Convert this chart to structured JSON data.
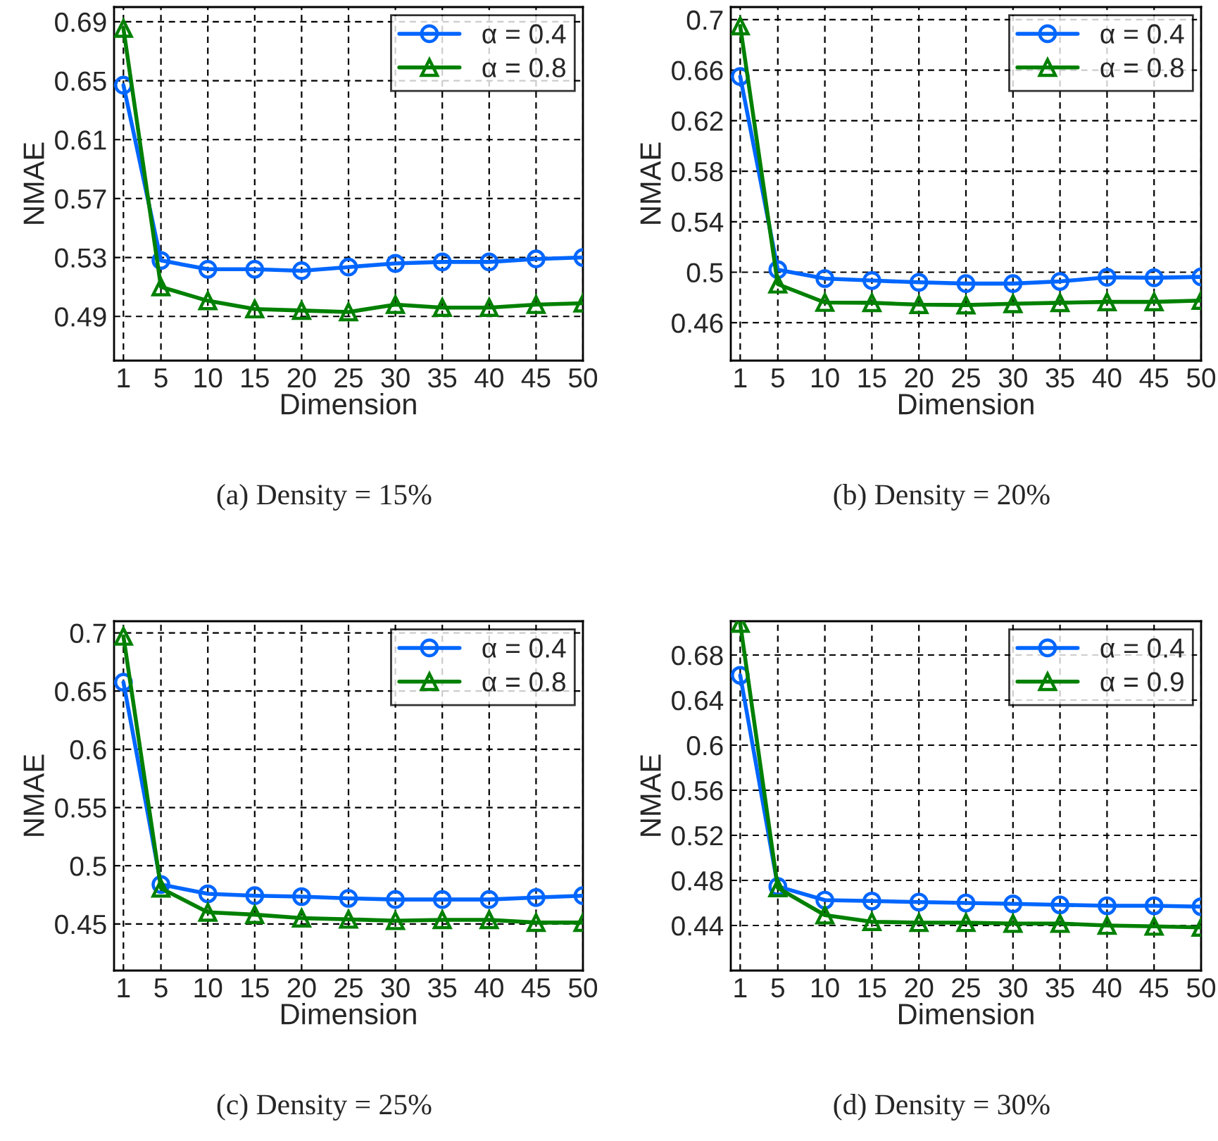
{
  "chart_data": [
    {
      "type": "line",
      "xlabel": "Dimension",
      "ylabel": "NMAE",
      "annotations": [
        "(a) Density = 15%"
      ],
      "x": [
        1,
        5,
        10,
        15,
        20,
        25,
        30,
        35,
        40,
        45,
        50
      ],
      "xlim": [
        0,
        50
      ],
      "xticks": [
        1,
        5,
        10,
        15,
        20,
        25,
        30,
        35,
        40,
        45,
        50
      ],
      "ylim": [
        0.46,
        0.7
      ],
      "yticks": [
        0.49,
        0.53,
        0.57,
        0.61,
        0.65,
        0.69
      ],
      "grid": true,
      "legend": "top right",
      "series": [
        {
          "name": "α = 0.4",
          "color": "#0066ff",
          "marker": "circle",
          "values": [
            0.647,
            0.528,
            0.522,
            0.522,
            0.521,
            0.5235,
            0.526,
            0.527,
            0.527,
            0.529,
            0.53
          ]
        },
        {
          "name": "α = 0.8",
          "color": "#008000",
          "marker": "triangle",
          "values": [
            0.6855,
            0.51,
            0.5006,
            0.495,
            0.494,
            0.493,
            0.498,
            0.496,
            0.496,
            0.498,
            0.499
          ]
        }
      ]
    },
    {
      "type": "line",
      "xlabel": "Dimension",
      "ylabel": "NMAE",
      "annotations": [
        "(b) Density = 20%"
      ],
      "x": [
        1,
        5,
        10,
        15,
        20,
        25,
        30,
        35,
        40,
        45,
        50
      ],
      "xlim": [
        0,
        50
      ],
      "xticks": [
        1,
        5,
        10,
        15,
        20,
        25,
        30,
        35,
        40,
        45,
        50
      ],
      "ylim": [
        0.43,
        0.71
      ],
      "yticks": [
        0.46,
        0.5,
        0.54,
        0.58,
        0.62,
        0.66,
        0.7
      ],
      "grid": true,
      "legend": "top right",
      "series": [
        {
          "name": "α = 0.4",
          "color": "#0066ff",
          "marker": "circle",
          "values": [
            0.655,
            0.502,
            0.495,
            0.4934,
            0.492,
            0.491,
            0.491,
            0.4927,
            0.496,
            0.4956,
            0.4963
          ]
        },
        {
          "name": "α = 0.8",
          "color": "#008000",
          "marker": "triangle",
          "values": [
            0.695,
            0.4905,
            0.476,
            0.4758,
            0.4743,
            0.474,
            0.475,
            0.4758,
            0.4765,
            0.4765,
            0.4776
          ]
        }
      ]
    },
    {
      "type": "line",
      "xlabel": "Dimension",
      "ylabel": "NMAE",
      "annotations": [
        "(c) Density = 25%"
      ],
      "x": [
        1,
        5,
        10,
        15,
        20,
        25,
        30,
        35,
        40,
        45,
        50
      ],
      "xlim": [
        0,
        50
      ],
      "xticks": [
        1,
        5,
        10,
        15,
        20,
        25,
        30,
        35,
        40,
        45,
        50
      ],
      "ylim": [
        0.41,
        0.71
      ],
      "yticks": [
        0.45,
        0.5,
        0.55,
        0.6,
        0.65,
        0.7
      ],
      "grid": true,
      "legend": "top right",
      "series": [
        {
          "name": "α = 0.4",
          "color": "#0066ff",
          "marker": "circle",
          "values": [
            0.6576,
            0.4839,
            0.4759,
            0.4743,
            0.4735,
            0.472,
            0.471,
            0.471,
            0.471,
            0.4727,
            0.4743
          ]
        },
        {
          "name": "α = 0.8",
          "color": "#008000",
          "marker": "triangle",
          "values": [
            0.697,
            0.4807,
            0.46,
            0.458,
            0.455,
            0.454,
            0.4528,
            0.4536,
            0.4536,
            0.4512,
            0.4512
          ]
        }
      ]
    },
    {
      "type": "line",
      "xlabel": "Dimension",
      "ylabel": "NMAE",
      "annotations": [
        "(d) Density = 30%"
      ],
      "x": [
        1,
        5,
        10,
        15,
        20,
        25,
        30,
        35,
        40,
        45,
        50
      ],
      "xlim": [
        0,
        50
      ],
      "xticks": [
        1,
        5,
        10,
        15,
        20,
        25,
        30,
        35,
        40,
        45,
        50
      ],
      "ylim": [
        0.4,
        0.71
      ],
      "yticks": [
        0.44,
        0.48,
        0.52,
        0.56,
        0.6,
        0.64,
        0.68
      ],
      "grid": true,
      "legend": "top right",
      "series": [
        {
          "name": "α = 0.4",
          "color": "#0066ff",
          "marker": "circle",
          "values": [
            0.662,
            0.4746,
            0.4625,
            0.4617,
            0.4608,
            0.46,
            0.4592,
            0.4583,
            0.4575,
            0.4575,
            0.4567
          ]
        },
        {
          "name": "α = 0.9",
          "color": "#008000",
          "marker": "triangle",
          "values": [
            0.708,
            0.4733,
            0.4492,
            0.4433,
            0.4425,
            0.4425,
            0.4417,
            0.4417,
            0.44,
            0.4392,
            0.4383
          ]
        }
      ]
    }
  ]
}
